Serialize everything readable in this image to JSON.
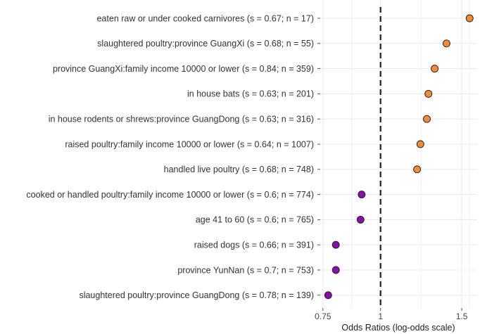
{
  "chart_data": {
    "type": "scatter",
    "xlabel": "Odds Ratios (log-odds scale)",
    "x_scale": "log",
    "xlim": [
      0.74,
      1.62
    ],
    "x_ticks": [
      0.75,
      1,
      1.5
    ],
    "x_tick_labels": [
      "0.75",
      "1",
      "1.5"
    ],
    "reference_line": {
      "x": 1,
      "style": "dashed"
    },
    "grid": true,
    "colors": {
      "positive": "#F28C3A",
      "negative": "#8A0FA8",
      "reference_line": "#222222",
      "grid": "#EBEBEB"
    },
    "points": [
      {
        "label": "eaten raw or under cooked carnivores  (s = 0.67; n = 17)",
        "value": 1.56,
        "group": "positive"
      },
      {
        "label": "slaughtered poultry:province GuangXi  (s = 0.68; n = 55)",
        "value": 1.39,
        "group": "positive"
      },
      {
        "label": "province GuangXi:family income 10000 or lower  (s = 0.84; n = 359)",
        "value": 1.31,
        "group": "positive"
      },
      {
        "label": "in house bats  (s = 0.63; n = 201)",
        "value": 1.27,
        "group": "positive"
      },
      {
        "label": "in house rodents or shrews:province GuangDong  (s = 0.63; n = 316)",
        "value": 1.26,
        "group": "positive"
      },
      {
        "label": "raised poultry:family income 10000 or lower  (s = 0.64; n = 1007)",
        "value": 1.22,
        "group": "positive"
      },
      {
        "label": "handled live poultry  (s = 0.68; n = 748)",
        "value": 1.2,
        "group": "positive"
      },
      {
        "label": "cooked or handled poultry:family income 10000 or lower  (s = 0.6; n = 774)",
        "value": 0.91,
        "group": "negative"
      },
      {
        "label": "age 41 to 60  (s = 0.6; n = 765)",
        "value": 0.905,
        "group": "negative"
      },
      {
        "label": "raised dogs  (s = 0.66; n = 391)",
        "value": 0.8,
        "group": "negative"
      },
      {
        "label": "province YunNan  (s = 0.7; n = 753)",
        "value": 0.8,
        "group": "negative"
      },
      {
        "label": "slaughtered poultry:province GuangDong  (s = 0.78; n = 139)",
        "value": 0.77,
        "group": "negative"
      }
    ]
  }
}
